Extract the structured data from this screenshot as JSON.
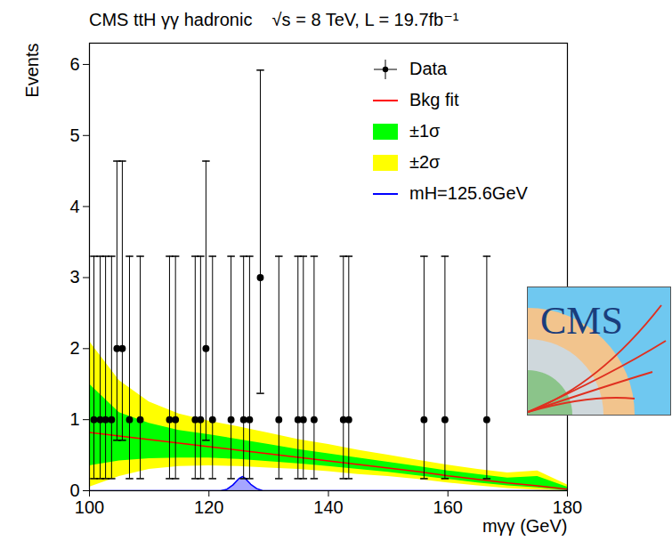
{
  "chart_data": {
    "type": "scatter",
    "title": "CMS ttH γγ hadronic    √s = 8 TeV, L = 19.7fb⁻¹",
    "x_label": "mγγ (GeV)",
    "y_label": "Events",
    "xlim": [
      100,
      180
    ],
    "xticks": [
      100,
      120,
      140,
      160,
      180
    ],
    "ylim": [
      0,
      6.3
    ],
    "yticks": [
      0,
      1,
      2,
      3,
      4,
      5,
      6
    ],
    "legend": "top-right",
    "annotations": [
      "CMS"
    ],
    "series": [
      {
        "name": "Data",
        "type": "scatter",
        "marker": "circle",
        "color": "#000000",
        "x": [
          100.75,
          101.8,
          102.7,
          103.7,
          104.6,
          105.5,
          106.7,
          108.5,
          113.4,
          114.4,
          117.7,
          118.6,
          119.5,
          120.6,
          123.7,
          125.8,
          126.8,
          128.6,
          131.7,
          134.9,
          135.8,
          137.6,
          142.5,
          143.4,
          156,
          159.5,
          166.5
        ],
        "values": [
          1,
          1,
          1,
          1,
          2,
          2,
          1,
          1,
          1,
          1,
          1,
          1,
          2,
          1,
          1,
          1,
          1,
          3,
          1,
          1,
          1,
          1,
          1,
          1,
          1,
          1,
          1
        ],
        "lower": [
          0.17,
          0.17,
          0.17,
          0.17,
          0.71,
          0.71,
          0.17,
          0.17,
          0.17,
          0.17,
          0.17,
          0.17,
          0.71,
          0.17,
          0.17,
          0.17,
          0.17,
          1.37,
          0.17,
          0.17,
          0.17,
          0.17,
          0.17,
          0.17,
          0.17,
          0.17,
          0.17
        ],
        "upper": [
          3.3,
          3.3,
          3.3,
          3.3,
          4.64,
          4.64,
          3.3,
          3.3,
          3.3,
          3.3,
          3.3,
          3.3,
          4.64,
          3.3,
          3.3,
          3.3,
          3.3,
          5.92,
          3.3,
          3.3,
          3.3,
          3.3,
          3.3,
          3.3,
          3.3,
          3.3,
          3.3
        ]
      },
      {
        "name": "Bkg fit",
        "type": "line",
        "color": "#ff0000",
        "x": [
          100,
          105,
          110,
          115,
          120,
          125,
          130,
          135,
          140,
          145,
          150,
          155,
          160,
          165,
          170,
          175,
          180
        ],
        "values": [
          0.82,
          0.77,
          0.72,
          0.67,
          0.62,
          0.57,
          0.52,
          0.47,
          0.42,
          0.37,
          0.32,
          0.27,
          0.21,
          0.16,
          0.11,
          0.07,
          0.02
        ]
      },
      {
        "name": "±1σ",
        "type": "band",
        "color": "#00ff00",
        "x": [
          100,
          105,
          110,
          115,
          120,
          125,
          130,
          135,
          140,
          145,
          150,
          155,
          160,
          165,
          170,
          175,
          180
        ],
        "lower": [
          0.35,
          0.42,
          0.45,
          0.46,
          0.46,
          0.44,
          0.41,
          0.38,
          0.34,
          0.3,
          0.26,
          0.21,
          0.16,
          0.11,
          0.07,
          0.04,
          0
        ],
        "upper": [
          1.5,
          1.1,
          0.95,
          0.85,
          0.79,
          0.72,
          0.65,
          0.58,
          0.52,
          0.46,
          0.4,
          0.34,
          0.28,
          0.23,
          0.18,
          0.2,
          0.05
        ]
      },
      {
        "name": "±2σ",
        "type": "band",
        "color": "#ffff00",
        "x": [
          100,
          105,
          110,
          115,
          120,
          125,
          130,
          135,
          140,
          145,
          150,
          155,
          160,
          165,
          170,
          175,
          180
        ],
        "lower": [
          0.05,
          0.2,
          0.3,
          0.34,
          0.35,
          0.34,
          0.32,
          0.3,
          0.27,
          0.23,
          0.2,
          0.16,
          0.11,
          0.07,
          0.03,
          0.01,
          0
        ],
        "upper": [
          2.1,
          1.55,
          1.25,
          1.08,
          0.98,
          0.9,
          0.81,
          0.72,
          0.65,
          0.57,
          0.5,
          0.43,
          0.36,
          0.3,
          0.25,
          0.28,
          0.08
        ]
      },
      {
        "name": "mH=125.6GeV",
        "type": "line",
        "color": "#0000ff",
        "x": [
          100,
          122,
          123,
          124,
          125,
          125.6,
          126,
          127,
          128,
          129,
          180
        ],
        "values": [
          0,
          0,
          0.02,
          0.08,
          0.17,
          0.2,
          0.18,
          0.09,
          0.03,
          0,
          0
        ]
      }
    ]
  }
}
